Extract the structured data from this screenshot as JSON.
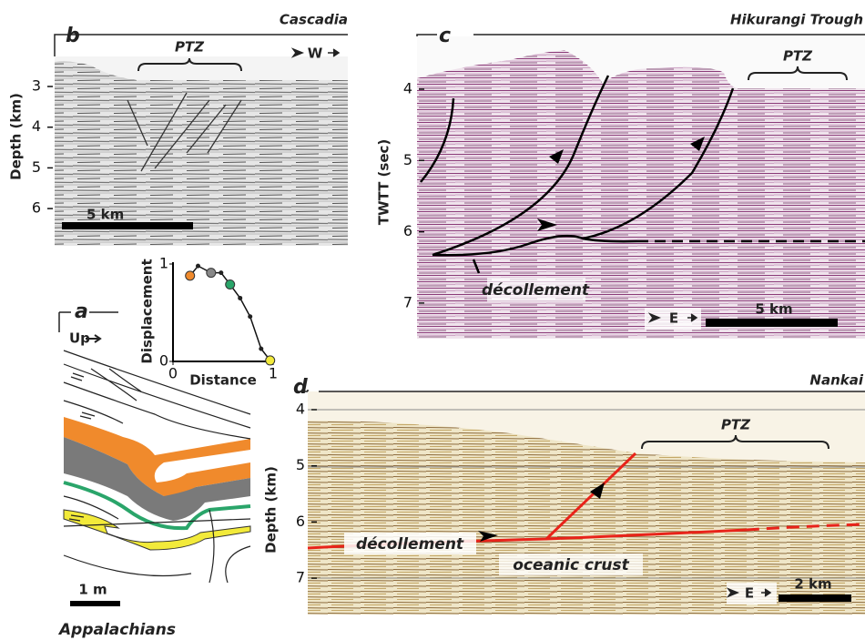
{
  "panel_b": {
    "letter": "b",
    "title": "Cascadia",
    "zone": "PTZ",
    "direction": "W",
    "axis_label": "Depth (km)",
    "ticks": [
      3,
      4,
      5,
      6
    ],
    "scale_bar": "5 km"
  },
  "panel_c": {
    "letter": "c",
    "title": "Hikurangi Trough",
    "zone": "PTZ",
    "direction": "E",
    "axis_label": "TWTT (sec)",
    "ticks": [
      4,
      5,
      6,
      7
    ],
    "scale_bar": "5 km",
    "fault_label": "décollement"
  },
  "panel_a": {
    "letter": "a",
    "direction": "Up",
    "scale_bar": "1 m",
    "title": "Appalachians",
    "inset": {
      "type": "line",
      "y_label": "Displacement",
      "x_label": "Distance",
      "xlim": [
        0,
        1
      ],
      "ylim": [
        0,
        1
      ],
      "xticks": [
        0,
        1
      ],
      "yticks": [
        0,
        1
      ],
      "x": [
        0.17,
        0.25,
        0.38,
        0.48,
        0.57,
        0.67,
        0.77,
        0.88,
        0.97
      ],
      "y": [
        0.88,
        0.98,
        0.91,
        0.91,
        0.79,
        0.65,
        0.46,
        0.13,
        0.01
      ],
      "colors": [
        "#f08a2c",
        "#222222",
        "#888888",
        "#222222",
        "#2aa56a",
        "#222222",
        "#222222",
        "#222222",
        "#f2ea3a"
      ]
    }
  },
  "panel_d": {
    "letter": "d",
    "title": "Nankai",
    "zone": "PTZ",
    "direction": "E",
    "axis_label": "Depth (km)",
    "ticks": [
      4,
      5,
      6,
      7
    ],
    "scale_bar": "2 km",
    "fault_label": "décollement",
    "layer_label": "oceanic crust"
  }
}
